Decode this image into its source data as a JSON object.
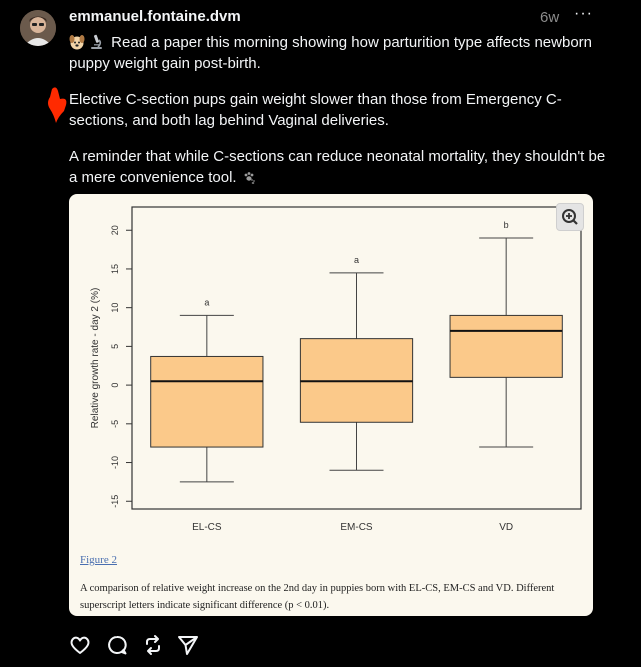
{
  "post": {
    "username": "emmanuel.fontaine.dvm",
    "time": "6w",
    "more": "···",
    "p1": "Read a paper this morning showing how parturition type affects newborn puppy weight gain post-birth.",
    "p2": "Elective C-section pups gain weight slower than those from Emergency C-sections, and both lag behind Vaginal deliveries.",
    "p3": "A reminder that while C-sections can reduce neonatal mortality, they shouldn't be a mere convenience tool."
  },
  "figure": {
    "link_text": "Figure 2",
    "caption": "A comparison of relative weight increase on the 2nd day in puppies born with EL-CS, EM-CS and VD. Different superscript letters indicate significant difference (p < 0.01)."
  },
  "chart_data": {
    "type": "box",
    "ylabel": "Relative growth rate - day 2 (%)",
    "ylim": [
      -16,
      23
    ],
    "yticks": [
      -15,
      -10,
      -5,
      0,
      5,
      10,
      15,
      20
    ],
    "box_color": "#fbc98a",
    "categories": [
      "EL-CS",
      "EM-CS",
      "VD"
    ],
    "boxes": [
      {
        "label": "EL-CS",
        "min": -12.5,
        "q1": -8,
        "median": 0.5,
        "q3": 3.7,
        "max": 9,
        "letter": "a"
      },
      {
        "label": "EM-CS",
        "min": -11,
        "q1": -4.8,
        "median": 0.5,
        "q3": 6,
        "max": 14.5,
        "letter": "a"
      },
      {
        "label": "VD",
        "min": -8,
        "q1": 1,
        "median": 7,
        "q3": 9,
        "max": 19,
        "letter": "b"
      }
    ]
  },
  "icons": {
    "colors": {
      "text": "#f3f5f7",
      "muted": "#8c8c8c",
      "pointer": "#ff2a00"
    }
  }
}
